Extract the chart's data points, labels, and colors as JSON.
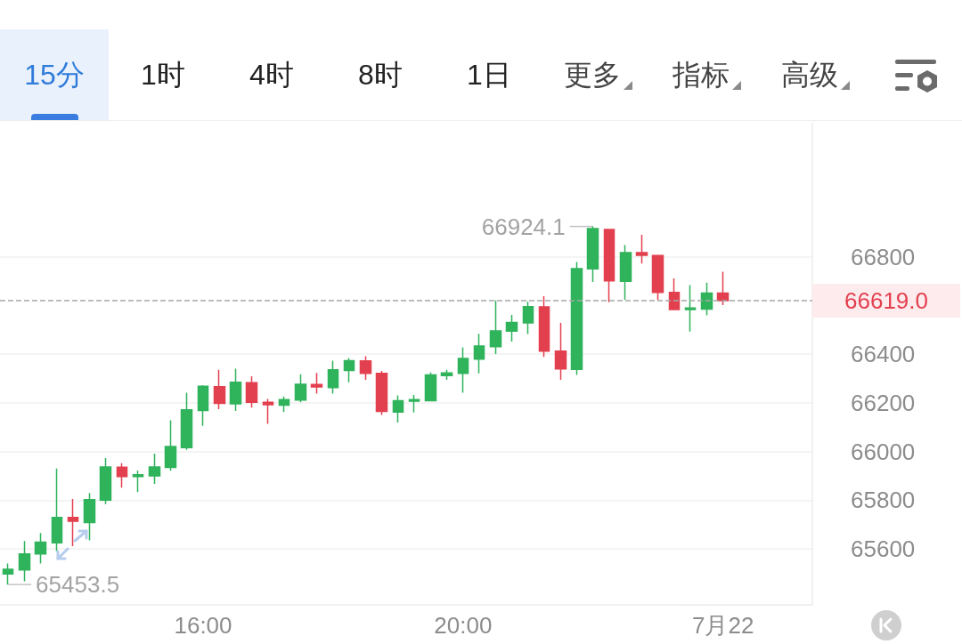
{
  "chart_data": {
    "type": "candlestick",
    "categories": [
      null,
      null,
      null,
      null,
      null,
      null,
      null,
      null,
      null,
      null,
      null,
      null,
      "16:00",
      null,
      null,
      null,
      null,
      null,
      null,
      null,
      null,
      null,
      null,
      null,
      null,
      null,
      null,
      null,
      "20:00",
      null,
      null,
      null,
      null,
      null,
      null,
      null,
      null,
      null,
      null,
      null,
      null,
      null,
      null,
      null,
      "7月22",
      null,
      null,
      null,
      null,
      null
    ],
    "ohlc": [
      [
        65497,
        65540,
        65453.5,
        65516
      ],
      [
        65513,
        65632,
        65467,
        65579
      ],
      [
        65579,
        65665,
        65540,
        65628
      ],
      [
        65625,
        65930,
        65591,
        65729
      ],
      [
        65729,
        65805,
        65611,
        65713
      ],
      [
        65708,
        65829,
        65635,
        65802
      ],
      [
        65800,
        65973,
        65784,
        65936
      ],
      [
        65935,
        65952,
        65851,
        65897
      ],
      [
        65897,
        65922,
        65833,
        65904
      ],
      [
        65900,
        65991,
        65867,
        65936
      ],
      [
        65934,
        66128,
        65921,
        66020
      ],
      [
        66016,
        66241,
        66007,
        66171
      ],
      [
        66168,
        66272,
        66105,
        66268
      ],
      [
        66266,
        66335,
        66174,
        66197
      ],
      [
        66196,
        66340,
        66166,
        66284
      ],
      [
        66282,
        66309,
        66180,
        66202
      ],
      [
        66202,
        66216,
        66113,
        66192
      ],
      [
        66190,
        66226,
        66162,
        66213
      ],
      [
        66211,
        66317,
        66202,
        66276
      ],
      [
        66275,
        66323,
        66238,
        66265
      ],
      [
        66262,
        66373,
        66238,
        66335
      ],
      [
        66333,
        66384,
        66284,
        66373
      ],
      [
        66372,
        66391,
        66294,
        66321
      ],
      [
        66321,
        66331,
        66150,
        66165
      ],
      [
        66162,
        66230,
        66119,
        66208
      ],
      [
        66207,
        66232,
        66160,
        66213
      ],
      [
        66208,
        66324,
        66207,
        66314
      ],
      [
        66312,
        66335,
        66294,
        66323
      ],
      [
        66321,
        66428,
        66241,
        66382
      ],
      [
        66379,
        66483,
        66321,
        66433
      ],
      [
        66430,
        66620,
        66400,
        66495
      ],
      [
        66494,
        66561,
        66451,
        66530
      ],
      [
        66528,
        66616,
        66482,
        66595
      ],
      [
        66594,
        66638,
        66388,
        66412
      ],
      [
        66412,
        66528,
        66294,
        66339
      ],
      [
        66337,
        66778,
        66314,
        66751
      ],
      [
        66750,
        66924.1,
        66696,
        66915
      ],
      [
        66912,
        66912,
        66613,
        66701
      ],
      [
        66699,
        66848,
        66623,
        66817
      ],
      [
        66817,
        66890,
        66772,
        66806
      ],
      [
        66805,
        66805,
        66623,
        66653
      ],
      [
        66653,
        66711,
        66583,
        66583
      ],
      [
        66583,
        66683,
        66492,
        66589
      ],
      [
        66585,
        66693,
        66559,
        66650
      ],
      [
        66650,
        66738,
        66601,
        66619.0
      ],
      null,
      null,
      null,
      null,
      null
    ],
    "colors": [
      "#2fb35b",
      "#2fb35b",
      "#2fb35b",
      "#2fb35b",
      "#e3404f",
      "#2fb35b",
      "#2fb35b",
      "#e3404f",
      "#2fb35b",
      "#2fb35b",
      "#2fb35b",
      "#2fb35b",
      "#2fb35b",
      "#e3404f",
      "#2fb35b",
      "#e3404f",
      "#e3404f",
      "#2fb35b",
      "#2fb35b",
      "#e3404f",
      "#2fb35b",
      "#2fb35b",
      "#e3404f",
      "#e3404f",
      "#2fb35b",
      "#2fb35b",
      "#2fb35b",
      "#2fb35b",
      "#2fb35b",
      "#2fb35b",
      "#2fb35b",
      "#2fb35b",
      "#2fb35b",
      "#e3404f",
      "#e3404f",
      "#2fb35b",
      "#2fb35b",
      "#e3404f",
      "#2fb35b",
      "#e3404f",
      "#e3404f",
      "#e3404f",
      "#2fb35b",
      "#2fb35b",
      "#e3404f",
      null,
      null,
      null,
      null,
      null
    ],
    "ylim": [
      65370,
      67350
    ],
    "yticks": [
      65600,
      65800,
      66000,
      66200,
      66400,
      66800
    ],
    "grid": "y",
    "ref_lines": [
      {
        "axis": "y",
        "value": 66619.0,
        "label": "66619.0",
        "color": "#a8a8a8",
        "line_style": "dashed"
      }
    ],
    "annotations": [
      "15分",
      "1时",
      "4时",
      "8时",
      "1日",
      "更多",
      "指标",
      "高级",
      "66924.1",
      "65453.5"
    ]
  }
}
